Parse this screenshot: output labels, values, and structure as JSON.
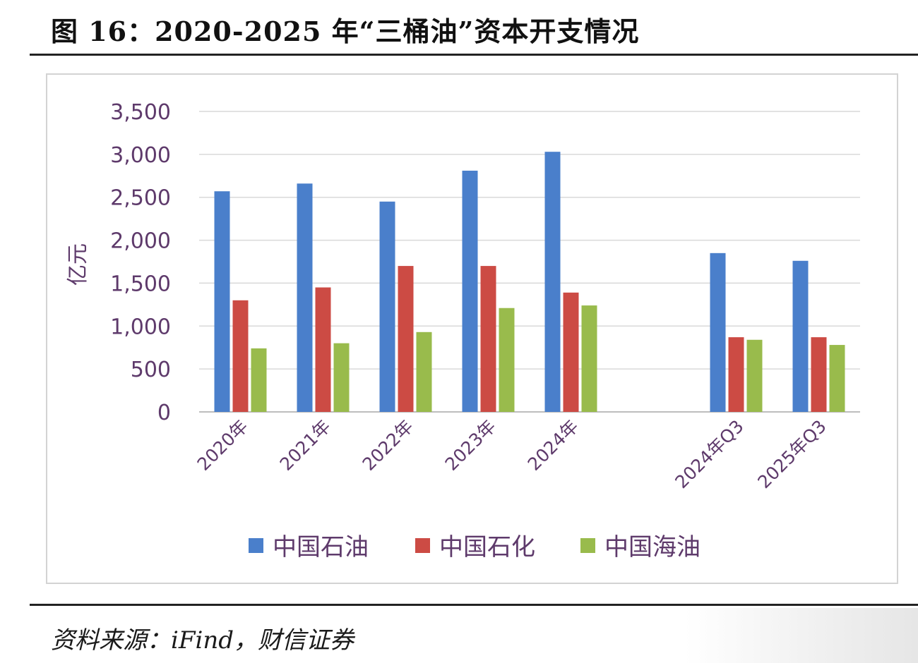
{
  "header": {
    "title": "图 16：2020-2025 年“三桶油”资本开支情况"
  },
  "footer": {
    "source": "资料来源：iFind，财信证券"
  },
  "chart_data": {
    "type": "bar",
    "ylabel": "亿元",
    "ylim": [
      0,
      3500
    ],
    "yticks": [
      0,
      500,
      1000,
      1500,
      2000,
      2500,
      3000,
      3500
    ],
    "ytick_labels": [
      "0",
      "500",
      "1,000",
      "1,500",
      "2,000",
      "2,500",
      "3,000",
      "3,500"
    ],
    "categories": [
      "2020年",
      "2021年",
      "2022年",
      "2023年",
      "2024年",
      "",
      "2024年Q3",
      "2025年Q3"
    ],
    "series": [
      {
        "name": "中国石油",
        "color": "#4a7fcb",
        "values": [
          2570,
          2660,
          2450,
          2810,
          3030,
          null,
          1850,
          1760
        ]
      },
      {
        "name": "中国石化",
        "color": "#cc4b44",
        "values": [
          1300,
          1450,
          1700,
          1700,
          1390,
          null,
          870,
          870
        ]
      },
      {
        "name": "中国海油",
        "color": "#99bb4c",
        "values": [
          740,
          800,
          930,
          1210,
          1240,
          null,
          840,
          780
        ]
      }
    ],
    "grid": true,
    "legend_position": "bottom"
  }
}
